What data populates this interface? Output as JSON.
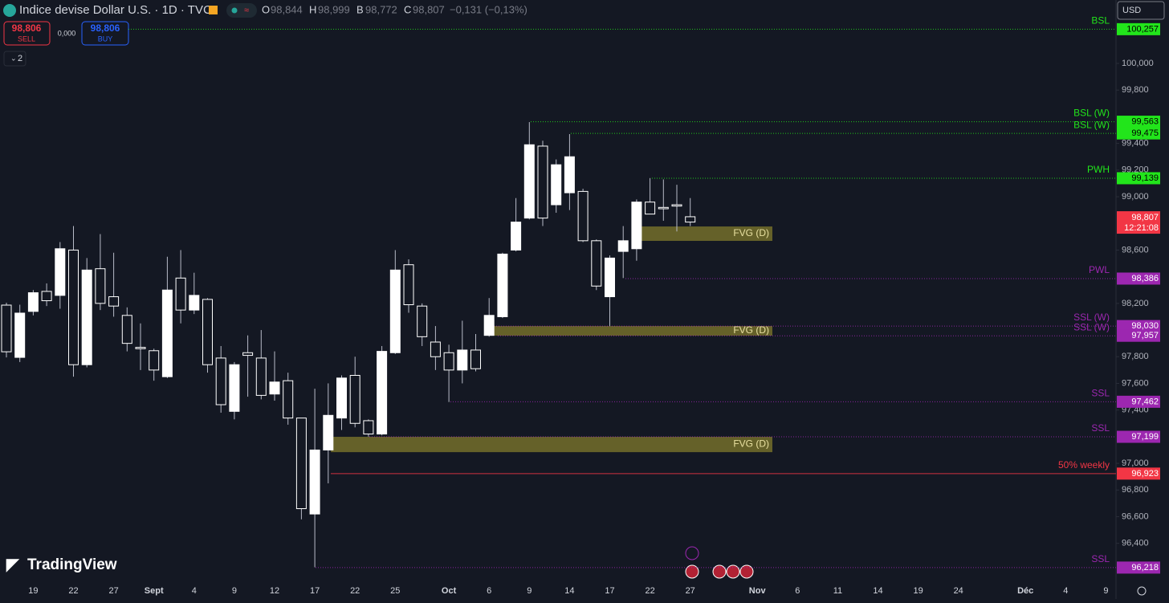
{
  "header": {
    "title": "Indice devise Dollar U.S. · 1D · TVC",
    "ohlc": [
      {
        "label": "O",
        "value": "98,844"
      },
      {
        "label": "H",
        "value": "98,999"
      },
      {
        "label": "B",
        "value": "98,772"
      },
      {
        "label": "C",
        "value": "98,807"
      }
    ],
    "change": "−0,131 (−0,13%)",
    "sell_price": "98,806",
    "sell": "SELL",
    "spread": "0,000",
    "buy_price": "98,806",
    "buy": "BUY",
    "indicators": "2",
    "currency": "USD",
    "brand": "TradingView"
  },
  "chart_data": {
    "type": "candlestick",
    "up_color": "#ffffff",
    "down_color": "#141823",
    "wick_color": "#b8bcc8",
    "categories": [
      null,
      null,
      "19",
      null,
      null,
      "22",
      null,
      null,
      "27",
      null,
      null,
      "Sept",
      null,
      null,
      "4",
      null,
      null,
      "9",
      null,
      null,
      "12",
      null,
      null,
      "17",
      null,
      null,
      "22",
      null,
      null,
      "25",
      null,
      null,
      null,
      "Oct",
      null,
      null,
      "6",
      null,
      null,
      "9",
      null,
      null,
      "14",
      null,
      null,
      "17",
      null,
      null,
      "22",
      null,
      null,
      "27",
      null,
      null,
      null,
      null,
      "Nov",
      null,
      null,
      "6",
      null,
      null,
      "11",
      null,
      null,
      "14",
      null,
      null,
      "19",
      null,
      null,
      "24",
      null,
      null,
      null,
      null,
      "Déc",
      null,
      null,
      "4",
      null,
      null,
      "9"
    ],
    "open": [
      98187,
      97795,
      98140,
      98290,
      98260,
      98600,
      97740,
      98460,
      98250,
      98110,
      97870,
      97845,
      97650,
      98390,
      98150,
      98230,
      97790,
      97390,
      97830,
      97790,
      97520,
      97620,
      97340,
      96620,
      97100,
      97340,
      97660,
      97320,
      97220,
      97830,
      98490,
      98180,
      97910,
      97830,
      97700,
      97850,
      97960,
      98100,
      98600,
      98840,
      99380,
      98940,
      99030,
      99040,
      98670,
      98250,
      98590,
      98610,
      98960,
      98920,
      98940,
      98850,
      null,
      null,
      null,
      null,
      null,
      null,
      null,
      null,
      null,
      null,
      null,
      null,
      null,
      null,
      null,
      null,
      null,
      null,
      null,
      null,
      null,
      null,
      null,
      null,
      null,
      null,
      null,
      null,
      null,
      null,
      null
    ],
    "high": [
      98205,
      98190,
      98300,
      98350,
      98660,
      98780,
      98540,
      98720,
      98580,
      98170,
      98050,
      97860,
      98550,
      98600,
      98430,
      98240,
      97880,
      97760,
      97960,
      98000,
      97840,
      97680,
      97340,
      97560,
      97600,
      97660,
      97800,
      97330,
      97880,
      98600,
      98530,
      98200,
      98030,
      97890,
      98070,
      97970,
      98240,
      98580,
      98990,
      99560,
      99420,
      99280,
      99470,
      99060,
      98680,
      98560,
      98780,
      98980,
      99140,
      99130,
      99090,
      98990,
      null,
      null,
      null,
      null,
      null,
      null,
      null,
      null,
      null,
      null,
      null,
      null,
      null,
      null,
      null,
      null,
      null,
      null,
      null,
      null,
      null,
      null,
      null,
      null,
      null,
      null,
      null,
      null,
      null,
      null,
      null
    ],
    "low": [
      97795,
      97760,
      98110,
      98180,
      98160,
      97650,
      97720,
      98150,
      98100,
      97840,
      97700,
      97620,
      97640,
      98050,
      98120,
      97680,
      97380,
      97330,
      97500,
      97480,
      97470,
      97290,
      96580,
      96220,
      96850,
      97250,
      97270,
      97200,
      97210,
      97820,
      98130,
      97880,
      97700,
      97460,
      97600,
      97690,
      97950,
      98090,
      98590,
      98830,
      98780,
      98880,
      98900,
      98660,
      98300,
      98030,
      98390,
      98520,
      98870,
      98820,
      98740,
      98780,
      null,
      null,
      null,
      null,
      null,
      null,
      null,
      null,
      null,
      null,
      null,
      null,
      null,
      null,
      null,
      null,
      null,
      null,
      null,
      null,
      null,
      null,
      null,
      null,
      null,
      null,
      null,
      null,
      null,
      null,
      null
    ],
    "close": [
      97837,
      98127,
      98280,
      98220,
      98610,
      97740,
      98450,
      98200,
      98180,
      97900,
      97860,
      97700,
      98300,
      98150,
      98260,
      97740,
      97440,
      97740,
      97810,
      97510,
      97610,
      97340,
      96660,
      97100,
      97360,
      97640,
      97300,
      97220,
      97840,
      98450,
      98190,
      97950,
      97800,
      97700,
      97850,
      97710,
      98110,
      98570,
      98810,
      99390,
      98840,
      99240,
      99300,
      98670,
      98330,
      98540,
      98670,
      98960,
      98870,
      98910,
      98930,
      98810,
      null,
      null,
      null,
      null,
      null,
      null,
      null,
      null,
      null,
      null,
      null,
      null,
      null,
      null,
      null,
      null,
      null,
      null,
      null,
      null,
      null,
      null,
      null,
      null,
      null,
      null,
      null,
      null,
      null,
      null,
      null
    ],
    "ylim": [
      96139,
      100476
    ],
    "yticks": [
      {
        "value": 100000,
        "label": "100,000"
      },
      {
        "value": 99800,
        "label": "99,800"
      },
      {
        "value": 99400,
        "label": "99,400"
      },
      {
        "value": 99200,
        "label": "99,200"
      },
      {
        "value": 99000,
        "label": "99,000"
      },
      {
        "value": 98600,
        "label": "98,600"
      },
      {
        "value": 98200,
        "label": "98,200"
      },
      {
        "value": 97800,
        "label": "97,800"
      },
      {
        "value": 97600,
        "label": "97,600"
      },
      {
        "value": 97400,
        "label": "97,400"
      },
      {
        "value": 97000,
        "label": "97,000"
      },
      {
        "value": 96800,
        "label": "96,800"
      },
      {
        "value": 96600,
        "label": "96,600"
      },
      {
        "value": 96400,
        "label": "96,400"
      }
    ],
    "levels": [
      {
        "name": "BSL",
        "value": 100257,
        "value_label": "100,257",
        "color": "#22e51b"
      },
      {
        "name": "BSL (W)",
        "value": 99563,
        "value_label": "99,563",
        "color": "#22e51b"
      },
      {
        "name": "BSL (W)",
        "value": 99475,
        "value_label": "99,475",
        "color": "#22e51b"
      },
      {
        "name": "PWH",
        "value": 99139,
        "value_label": "99,139",
        "color": "#22e51b"
      },
      {
        "name": "PWL",
        "value": 98386,
        "value_label": "98,386",
        "color": "#9c27b0"
      },
      {
        "name": "SSL (W)",
        "value": 98030,
        "value_label": "98,030",
        "color": "#9c27b0"
      },
      {
        "name": "SSL (W)",
        "value": 97957,
        "value_label": "97,957",
        "color": "#9c27b0"
      },
      {
        "name": "SSL",
        "value": 97462,
        "value_label": "97,462",
        "color": "#9c27b0"
      },
      {
        "name": "SSL",
        "value": 97199,
        "value_label": "97,199",
        "color": "#9c27b0"
      },
      {
        "name": "50% weekly",
        "value": 96923,
        "value_label": "96,923",
        "color": "#f23645"
      },
      {
        "name": "SSL",
        "value": 96218,
        "value_label": "96,218",
        "color": "#9c27b0"
      }
    ],
    "zones": [
      {
        "label": "FVG (D)",
        "top": 98777,
        "bottom": 98669,
        "color": "#807a2c"
      },
      {
        "label": "FVG (D)",
        "top": 98030,
        "bottom": 97958,
        "color": "#807a2c"
      },
      {
        "label": "FVG (D)",
        "top": 97199,
        "bottom": 97084,
        "color": "#807a2c"
      }
    ],
    "last_price": {
      "value": 98807,
      "value_label": "98,807",
      "countdown": "12:21:08",
      "color": "#f23645"
    }
  }
}
